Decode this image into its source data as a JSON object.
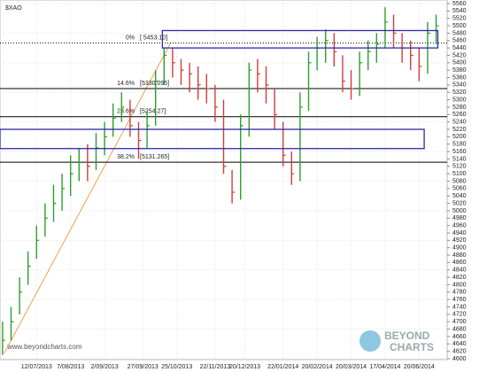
{
  "chart_data": {
    "type": "hlc",
    "title": "$XAO",
    "watermark": "www.beyondcharts.com",
    "logo": [
      "BEYOND",
      "CHARTS"
    ],
    "up_color": "#2e9e2e",
    "down_color": "#d43c3c",
    "grid": true,
    "xlim": [
      -0.3,
      52.3
    ],
    "xticks": [
      {
        "value": 4,
        "label": "12/07/2013"
      },
      {
        "value": 8,
        "label": "7/08/2013"
      },
      {
        "value": 12,
        "label": "2/09/2013"
      },
      {
        "value": 16.5,
        "label": "27/09/2013"
      },
      {
        "value": 20.5,
        "label": "25/10/2013"
      },
      {
        "value": 25,
        "label": "22/11/2013"
      },
      {
        "value": 28.5,
        "label": "20/12/2013"
      },
      {
        "value": 33,
        "label": "22/01/2014"
      },
      {
        "value": 37,
        "label": "20/02/2014"
      },
      {
        "value": 41,
        "label": "20/03/2014"
      },
      {
        "value": 45,
        "label": "17/04/2014"
      },
      {
        "value": 49,
        "label": "20/06/2014"
      }
    ],
    "ylim": [
      4600,
      5560
    ],
    "yticks": [
      5560,
      5540,
      5520,
      5500,
      5480,
      5460,
      5440,
      5420,
      5400,
      5380,
      5360,
      5340,
      5320,
      5300,
      5280,
      5260,
      5240,
      5220,
      5200,
      5180,
      5160,
      5140,
      5120,
      5100,
      5080,
      5060,
      5040,
      5020,
      5000,
      4980,
      4960,
      4940,
      4920,
      4900,
      4880,
      4860,
      4840,
      4820,
      4800,
      4780,
      4760,
      4740,
      4720,
      4700,
      4680,
      4660,
      4640,
      4620,
      4600
    ],
    "x": [
      0,
      1,
      2,
      3,
      4,
      5,
      6,
      7,
      8,
      9,
      10,
      11,
      12,
      13,
      14,
      15,
      16,
      17,
      18,
      19,
      20,
      21,
      22,
      23,
      24,
      25,
      26,
      27,
      28,
      29,
      30,
      31,
      32,
      33,
      34,
      35,
      36,
      37,
      38,
      39,
      40,
      41,
      42,
      43,
      44,
      45,
      46,
      47,
      48,
      49,
      50,
      51
    ],
    "high": [
      4700,
      4740,
      4820,
      4890,
      4960,
      5020,
      5070,
      5100,
      5150,
      5170,
      5180,
      5210,
      5240,
      5290,
      5320,
      5300,
      5240,
      5270,
      5380,
      5440,
      5440,
      5410,
      5400,
      5390,
      5370,
      5340,
      5300,
      5110,
      5260,
      5400,
      5410,
      5390,
      5330,
      5240,
      5160,
      5320,
      5430,
      5470,
      5490,
      5480,
      5420,
      5380,
      5430,
      5460,
      5480,
      5550,
      5530,
      5480,
      5460,
      5440,
      5510,
      5530
    ],
    "low": [
      4610,
      4650,
      4720,
      4800,
      4870,
      4930,
      4970,
      5000,
      5040,
      5080,
      5080,
      5110,
      5150,
      5200,
      5240,
      5200,
      5140,
      5170,
      5230,
      5340,
      5360,
      5340,
      5320,
      5300,
      5290,
      5240,
      5100,
      5020,
      5030,
      5200,
      5320,
      5290,
      5220,
      5120,
      5070,
      5080,
      5270,
      5380,
      5400,
      5390,
      5320,
      5300,
      5310,
      5380,
      5400,
      5440,
      5440,
      5400,
      5380,
      5350,
      5370,
      5450
    ],
    "close": [
      4650,
      4700,
      4780,
      4850,
      4920,
      4980,
      5020,
      5060,
      5100,
      5130,
      5120,
      5170,
      5200,
      5250,
      5280,
      5230,
      5190,
      5230,
      5350,
      5420,
      5400,
      5380,
      5370,
      5340,
      5330,
      5280,
      5120,
      5050,
      5230,
      5380,
      5370,
      5340,
      5260,
      5150,
      5100,
      5280,
      5400,
      5440,
      5460,
      5430,
      5350,
      5330,
      5400,
      5430,
      5450,
      5510,
      5480,
      5440,
      5420,
      5390,
      5480,
      5500
    ],
    "levels": [
      {
        "pct": "0%",
        "value": 5453.1,
        "label": "[ 5453.10]",
        "style": "dotted"
      },
      {
        "pct": "14.6%",
        "value": 5330.095,
        "label": "[5330.095]",
        "style": "solid"
      },
      {
        "pct": "23.6%",
        "value": 5254.27,
        "label": "[5254.27]",
        "style": "solid"
      },
      {
        "pct": "38.2%",
        "value": 5131.265,
        "label": "[5131.265]",
        "style": "solid"
      }
    ],
    "boxes": [
      {
        "x": [
          18.8,
          51.2
        ],
        "y": [
          5440,
          5487
        ]
      },
      {
        "x": [
          -0.3,
          49.6
        ],
        "y": [
          5168,
          5220
        ]
      }
    ],
    "trendline": {
      "x": [
        0.2,
        19.8
      ],
      "y": [
        4615,
        5455
      ],
      "color": "#f0a050"
    }
  }
}
